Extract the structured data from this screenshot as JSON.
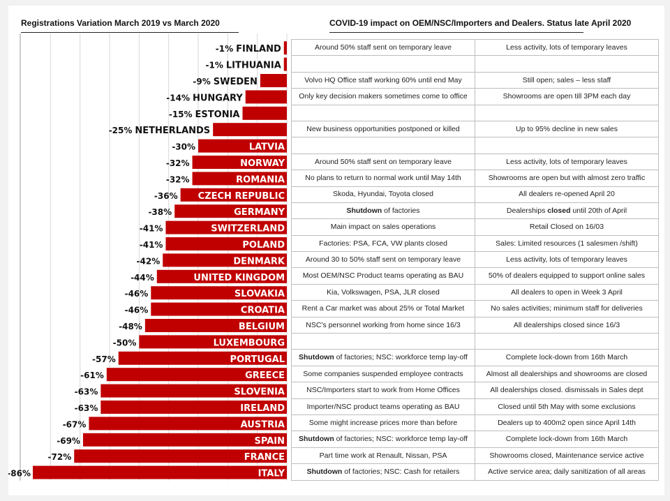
{
  "titles": {
    "left": "Registrations Variation March 2019 vs March 2020",
    "right": "COVID-19 impact on OEM/NSC/Importers and Dealers. Status late April 2020"
  },
  "colors": {
    "bar": "#c00000",
    "grid": "#d8d8d8",
    "text": "#111111"
  },
  "chart_data": {
    "type": "bar",
    "orientation": "horizontal",
    "title": "Registrations Variation March 2019 vs March 2020",
    "categories": [
      "FINLAND",
      "LITHUANIA",
      "SWEDEN",
      "HUNGARY",
      "ESTONIA",
      "NETHERLANDS",
      "LATVIA",
      "NORWAY",
      "ROMANIA",
      "CZECH REPUBLIC",
      "GERMANY",
      "SWITZERLAND",
      "POLAND",
      "DENMARK",
      "UNITED KINGDOM",
      "SLOVAKIA",
      "CROATIA",
      "BELGIUM",
      "LUXEMBOURG",
      "PORTUGAL",
      "GREECE",
      "SLOVENIA",
      "IRELAND",
      "AUSTRIA",
      "SPAIN",
      "FRANCE",
      "ITALY"
    ],
    "values": [
      -1,
      -1,
      -9,
      -14,
      -15,
      -25,
      -30,
      -32,
      -32,
      -36,
      -38,
      -41,
      -41,
      -42,
      -44,
      -46,
      -46,
      -48,
      -50,
      -57,
      -61,
      -63,
      -63,
      -67,
      -69,
      -72,
      -86
    ],
    "value_labels": [
      "-1%",
      "-1%",
      "-9%",
      "-14%",
      "-15%",
      "-25%",
      "-30%",
      "-32%",
      "-32%",
      "-36%",
      "-38%",
      "-41%",
      "-41%",
      "-42%",
      "-44%",
      "-46%",
      "-46%",
      "-48%",
      "-50%",
      "-57%",
      "-61%",
      "-63%",
      "-63%",
      "-67%",
      "-69%",
      "-72%",
      "-86%"
    ],
    "xlim": [
      -86,
      0
    ],
    "grid": true
  },
  "table": {
    "rows": [
      {
        "oem": "Around 50% staff sent on temporary leave",
        "dealers": "Less activity, lots of temporary leaves"
      },
      {
        "oem": "",
        "dealers": ""
      },
      {
        "oem": "Volvo HQ Office staff working 60% until end May",
        "dealers": "Still open; sales – less staff"
      },
      {
        "oem": "Only key decision makers sometimes come to office",
        "dealers": "Showrooms are open till 3PM each day"
      },
      {
        "oem": "",
        "dealers": ""
      },
      {
        "oem": "New business opportunities postponed or killed",
        "dealers": "Up to 95% decline in new sales"
      },
      {
        "oem": "",
        "dealers": ""
      },
      {
        "oem": "Around 50% staff sent on temporary leave",
        "dealers": "Less activity, lots of temporary leaves"
      },
      {
        "oem": "No plans to return to normal work until May 14th",
        "dealers": "Showrooms are open but with almost zero traffic"
      },
      {
        "oem": "Skoda, Hyundai, Toyota closed",
        "dealers": "All dealers re-opened April 20"
      },
      {
        "oem_bold": "Shutdown",
        "oem": " of factories",
        "dealers_pre": "Dealerships ",
        "dealers_bold": "closed",
        "dealers": " until 20th of April"
      },
      {
        "oem": "Main impact on sales operations",
        "dealers": "Retail Closed on 16/03"
      },
      {
        "oem": "Factories: PSA, FCA, VW plants closed",
        "dealers": "Sales: Limited resources (1 salesmen /shift)"
      },
      {
        "oem": "Around 30 to 50% staff sent on temporary leave",
        "dealers": "Less activity, lots of temporary leaves"
      },
      {
        "oem": "Most OEM/NSC Product teams operating as BAU",
        "dealers": "50% of dealers equipped to support online sales"
      },
      {
        "oem": "Kia, Volkswagen, PSA, JLR closed",
        "dealers": "All dealers to open in Week 3 April"
      },
      {
        "oem": "Rent a Car market was about 25% or Total Market",
        "dealers": "No sales activities; minimum staff for deliveries"
      },
      {
        "oem": "NSC's personnel working from home since 16/3",
        "dealers": "All dealerships closed since 16/3"
      },
      {
        "oem": "",
        "dealers": ""
      },
      {
        "oem_bold": "Shutdown",
        "oem": " of factories; NSC: workforce temp lay-off",
        "dealers": "Complete lock-down from 16th March"
      },
      {
        "oem": "Some companies suspended employee contracts",
        "dealers": "Almost all dealerships and showrooms are closed"
      },
      {
        "oem": "NSC/Importers start to work from Home Offices",
        "dealers": "All dealerships closed. dismissals in Sales dept"
      },
      {
        "oem": "Importer/NSC product teams operating as BAU",
        "dealers": "Closed until 5th May with some exclusions"
      },
      {
        "oem": "Some might increase prices more than before",
        "dealers": "Dealers up to 400m2 open since April 14th"
      },
      {
        "oem_bold": "Shutdown",
        "oem": " of factories; NSC: workforce temp lay-off",
        "dealers": "Complete lock-down from 16th March"
      },
      {
        "oem": "Part time work at Renault, Nissan, PSA",
        "dealers": "Showrooms closed, Maintenance service active"
      },
      {
        "oem_bold": "Shutdown",
        "oem": " of factories; NSC: Cash for retailers",
        "dealers": "Active service area; daily sanitization of all areas"
      }
    ]
  }
}
